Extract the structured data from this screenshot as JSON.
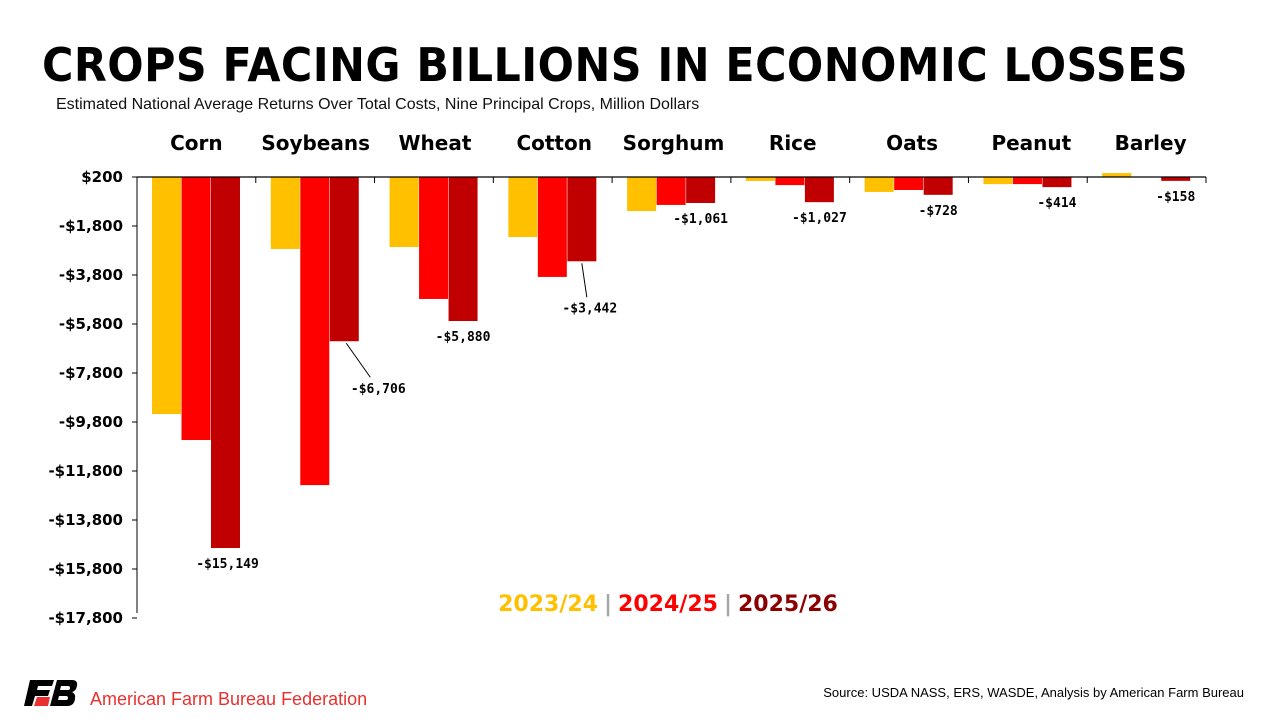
{
  "chart_data": {
    "type": "bar",
    "title": "CROPS FACING BILLIONS IN ECONOMIC LOSSES",
    "subtitle": "Estimated National Average Returns Over Total Costs, Nine Principal Crops, Million Dollars",
    "categories": [
      "Corn",
      "Soybeans",
      "Wheat",
      "Cotton",
      "Sorghum",
      "Rice",
      "Oats",
      "Peanut",
      "Barley"
    ],
    "series": [
      {
        "name": "2023/24",
        "color": "#ffc000",
        "values": [
          -9680,
          -2940,
          -2860,
          -2450,
          -1390,
          -160,
          -610,
          -290,
          160
        ]
      },
      {
        "name": "2024/25",
        "color": "#ff0000",
        "values": [
          -10740,
          -12580,
          -4980,
          -4080,
          -1140,
          -330,
          -530,
          -290,
          0
        ]
      },
      {
        "name": "2025/26",
        "color": "#c00000",
        "values": [
          -15149,
          -6706,
          -5880,
          -3442,
          -1061,
          -1027,
          -728,
          -414,
          -158
        ]
      }
    ],
    "data_labels": [
      "-$15,149",
      "-$6,706",
      "-$5,880",
      "-$3,442",
      "-$1,061",
      "-$1,027",
      "-$728",
      "-$414",
      "-$158"
    ],
    "y_tick_labels": [
      "$200",
      "-$1,800",
      "-$3,800",
      "-$5,800",
      "-$7,800",
      "-$9,800",
      "-$11,800",
      "-$13,800",
      "-$15,800",
      "-$17,800"
    ],
    "ylim": [
      -18000,
      0
    ],
    "legend_position": "bottom-center",
    "grid": false
  },
  "footer": {
    "org": "American Farm Bureau Federation",
    "source": "Source: USDA NASS, ERS, WASDE, Analysis by American Farm Bureau",
    "logo_text": "FB"
  }
}
